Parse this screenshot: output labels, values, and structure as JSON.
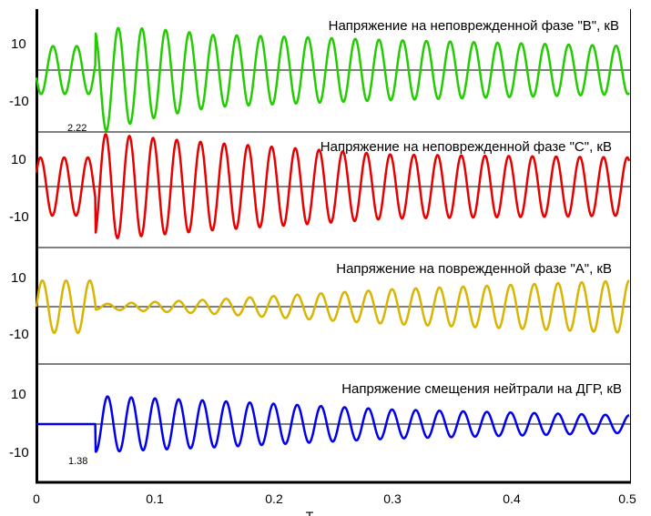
{
  "chart_data": {
    "type": "line",
    "xlabel": "T",
    "xlim": [
      0,
      0.5
    ],
    "x_ticks": [
      "0",
      "0.1",
      "0.2",
      "0.3",
      "0.4",
      "0.5"
    ],
    "grid": "horizontal separators and zero lines only",
    "fault_time": 0.05,
    "panels": [
      {
        "title": "Напряжение на неповрежденной фазе \"B\", кВ",
        "color": "#22cc00",
        "ylim": [
          -22,
          20
        ],
        "y_ticks": [
          "10",
          "-10"
        ],
        "pre_fault": {
          "amplitude": 8,
          "phase": 3.46
        },
        "post_fault": [
          {
            "t": 0.06,
            "amplitude": 17
          },
          {
            "t": 0.15,
            "amplitude": 12
          },
          {
            "t": 0.3,
            "amplitude": 10
          },
          {
            "t": 0.5,
            "amplitude": 8
          }
        ],
        "post_offset": -4,
        "annotation": "2.22"
      },
      {
        "title": "Напряжение на неповрежденной фазе \"C\", кВ",
        "color": "#e60000",
        "ylim": [
          -22,
          20
        ],
        "y_ticks": [
          "10",
          "-10"
        ],
        "pre_fault": {
          "amplitude": 10,
          "phase": 0.5
        },
        "post_fault": [
          {
            "t": 0.06,
            "amplitude": 18
          },
          {
            "t": 0.15,
            "amplitude": 15
          },
          {
            "t": 0.3,
            "amplitude": 11
          },
          {
            "t": 0.5,
            "amplitude": 10
          }
        ],
        "post_offset": 0,
        "annotation": ""
      },
      {
        "title": "Напряжение на поврежденной фазе \"A\", кВ",
        "color": "#d9b400",
        "ylim": [
          -22,
          20
        ],
        "y_ticks": [
          "10",
          "-10"
        ],
        "pre_fault": {
          "amplitude": 9,
          "phase": 0.0
        },
        "post_fault": [
          {
            "t": 0.06,
            "amplitude": 1
          },
          {
            "t": 0.15,
            "amplitude": 2.5
          },
          {
            "t": 0.3,
            "amplitude": 6
          },
          {
            "t": 0.5,
            "amplitude": 9
          }
        ],
        "post_offset": 0,
        "annotation": ""
      },
      {
        "title": "Напряжение смещения нейтрали на ДГР, кВ",
        "color": "#0000ee",
        "ylim": [
          -22,
          20
        ],
        "y_ticks": [
          "10",
          "-10"
        ],
        "pre_fault": {
          "amplitude": 0,
          "phase": 0.0
        },
        "post_fault": [
          {
            "t": 0.06,
            "amplitude": 9.5
          },
          {
            "t": 0.15,
            "amplitude": 8
          },
          {
            "t": 0.3,
            "amplitude": 5
          },
          {
            "t": 0.5,
            "amplitude": 3
          }
        ],
        "post_offset": 0,
        "annotation": "1.38"
      }
    ]
  }
}
